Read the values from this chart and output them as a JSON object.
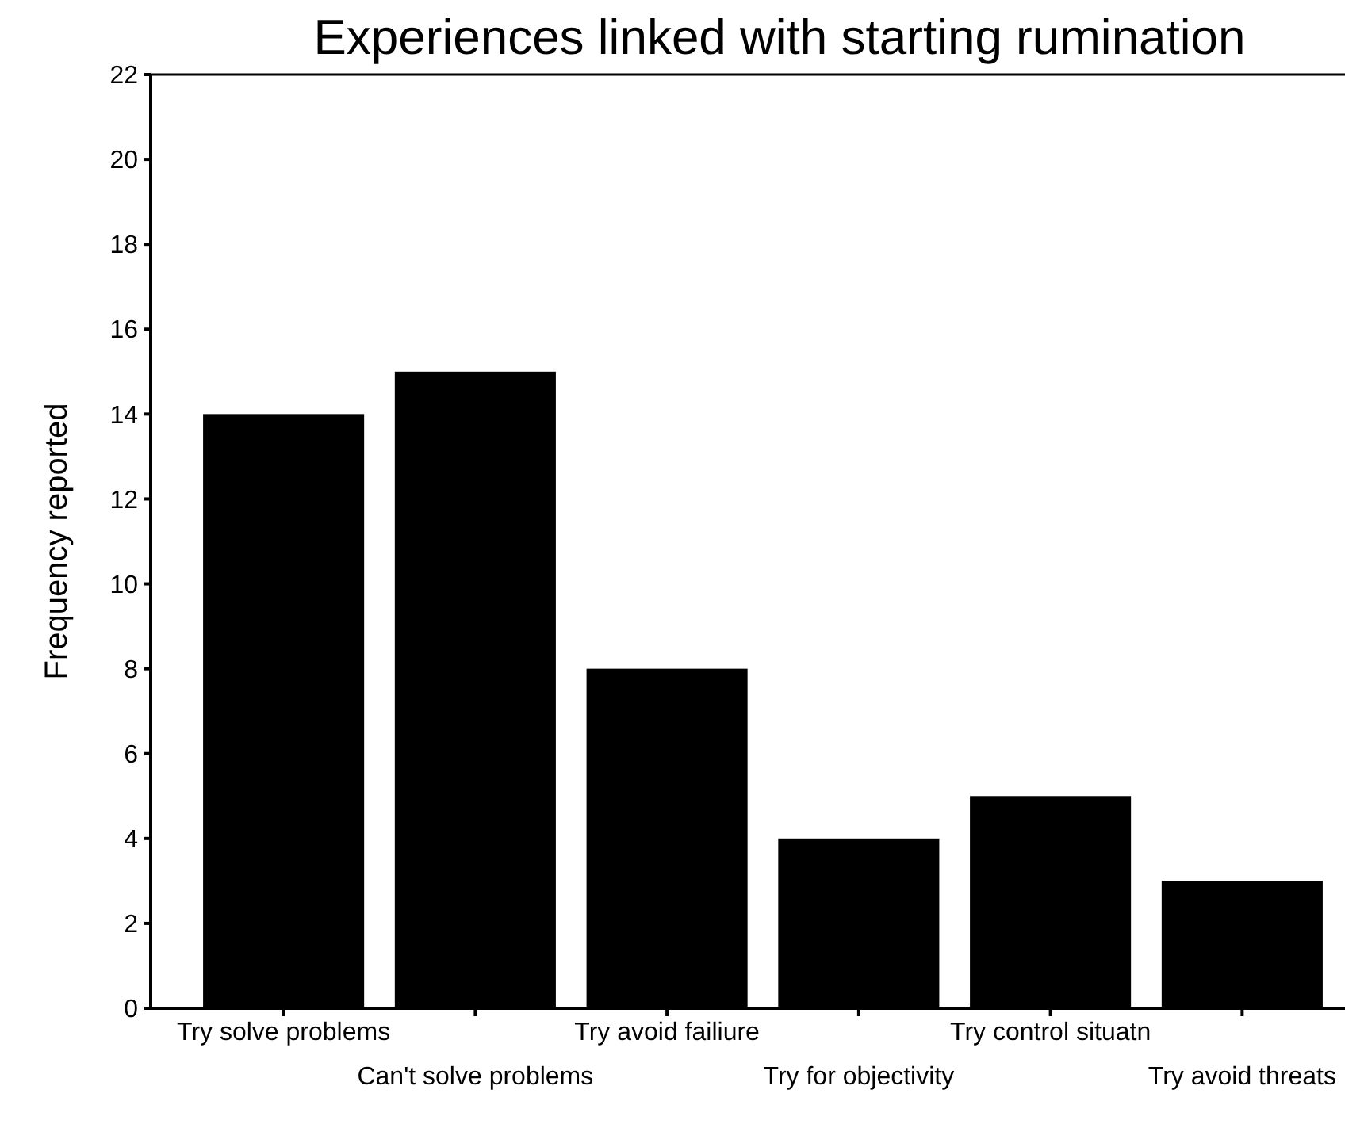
{
  "chart_data": {
    "type": "bar",
    "title": "Experiences linked with starting rumination",
    "ylabel": "Frequency reported",
    "categories": [
      "Try solve problems",
      "Can't solve problems",
      "Try avoid failiure",
      "Try for objectivity",
      "Try control situatn",
      "Try avoid threats"
    ],
    "values": [
      14,
      15,
      8,
      4,
      5,
      3
    ],
    "color": "#000000",
    "ylim": [
      0,
      22
    ],
    "yticks": [
      0,
      2,
      4,
      6,
      8,
      10,
      12,
      14,
      16,
      18,
      20,
      22
    ],
    "grid": false
  }
}
